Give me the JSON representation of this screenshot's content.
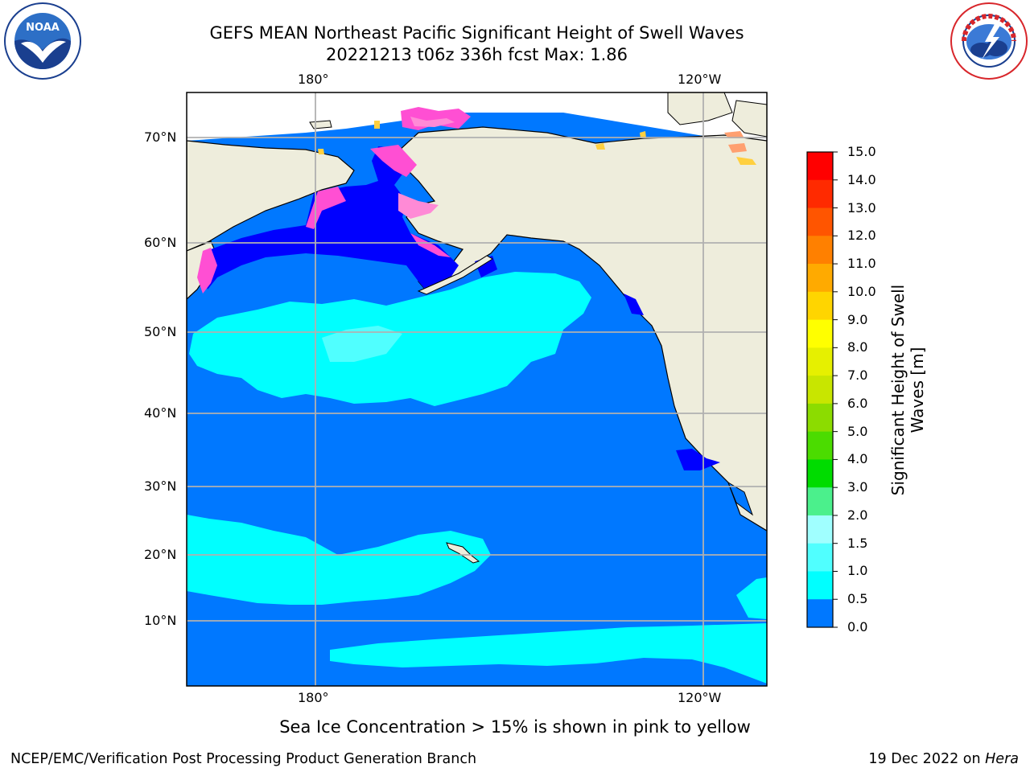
{
  "title": {
    "line1": "GEFS MEAN Northeast Pacific Significant Height of Swell Waves",
    "line2": "20221213 t06z 336h fcst   Max: 1.86"
  },
  "map": {
    "projection": "cylindrical",
    "lon_range": [
      "160°E",
      "113°W"
    ],
    "lat_range": [
      "1°N",
      "75°N"
    ],
    "top_lon_labels": [
      "180°",
      "120°W"
    ],
    "bottom_lon_labels": [
      "180°",
      "120°W"
    ],
    "lat_labels": [
      "70°N",
      "60°N",
      "50°N",
      "40°N",
      "30°N",
      "20°N",
      "10°N"
    ],
    "gridlines": true,
    "land_color": "#eeeddc",
    "ice_colors": [
      "#ff4fd3",
      "#ff8ad6",
      "#ffa070",
      "#ffd040"
    ]
  },
  "colorbar": {
    "label_line1": "Significant Height of Swell",
    "label_line2": "Waves [m]",
    "ticks": [
      "15.0",
      "14.0",
      "13.0",
      "12.0",
      "11.0",
      "10.0",
      "9.0",
      "8.0",
      "7.0",
      "6.0",
      "5.0",
      "4.0",
      "3.0",
      "2.0",
      "1.5",
      "1.0",
      "0.5",
      "0.0"
    ],
    "colors": [
      "#ff0000",
      "#ff2a00",
      "#ff5500",
      "#ff8000",
      "#ffaa00",
      "#ffd500",
      "#ffff00",
      "#e6f000",
      "#c8e600",
      "#8cdc00",
      "#4bdc00",
      "#00dc00",
      "#4bf08c",
      "#a0ffff",
      "#50ffff",
      "#00ffff",
      "#0078ff",
      "#0000ff"
    ]
  },
  "note": "Sea Ice Concentration > 15% is shown in pink to yellow",
  "footer": {
    "left": "NCEP/EMC/Verification Post Processing Product Generation Branch",
    "date": "19 Dec 2022 on ",
    "machine": "Hera"
  },
  "logos": {
    "left_text": "NOAA",
    "right_text": "NATIONAL WEATHER SERVICE"
  }
}
